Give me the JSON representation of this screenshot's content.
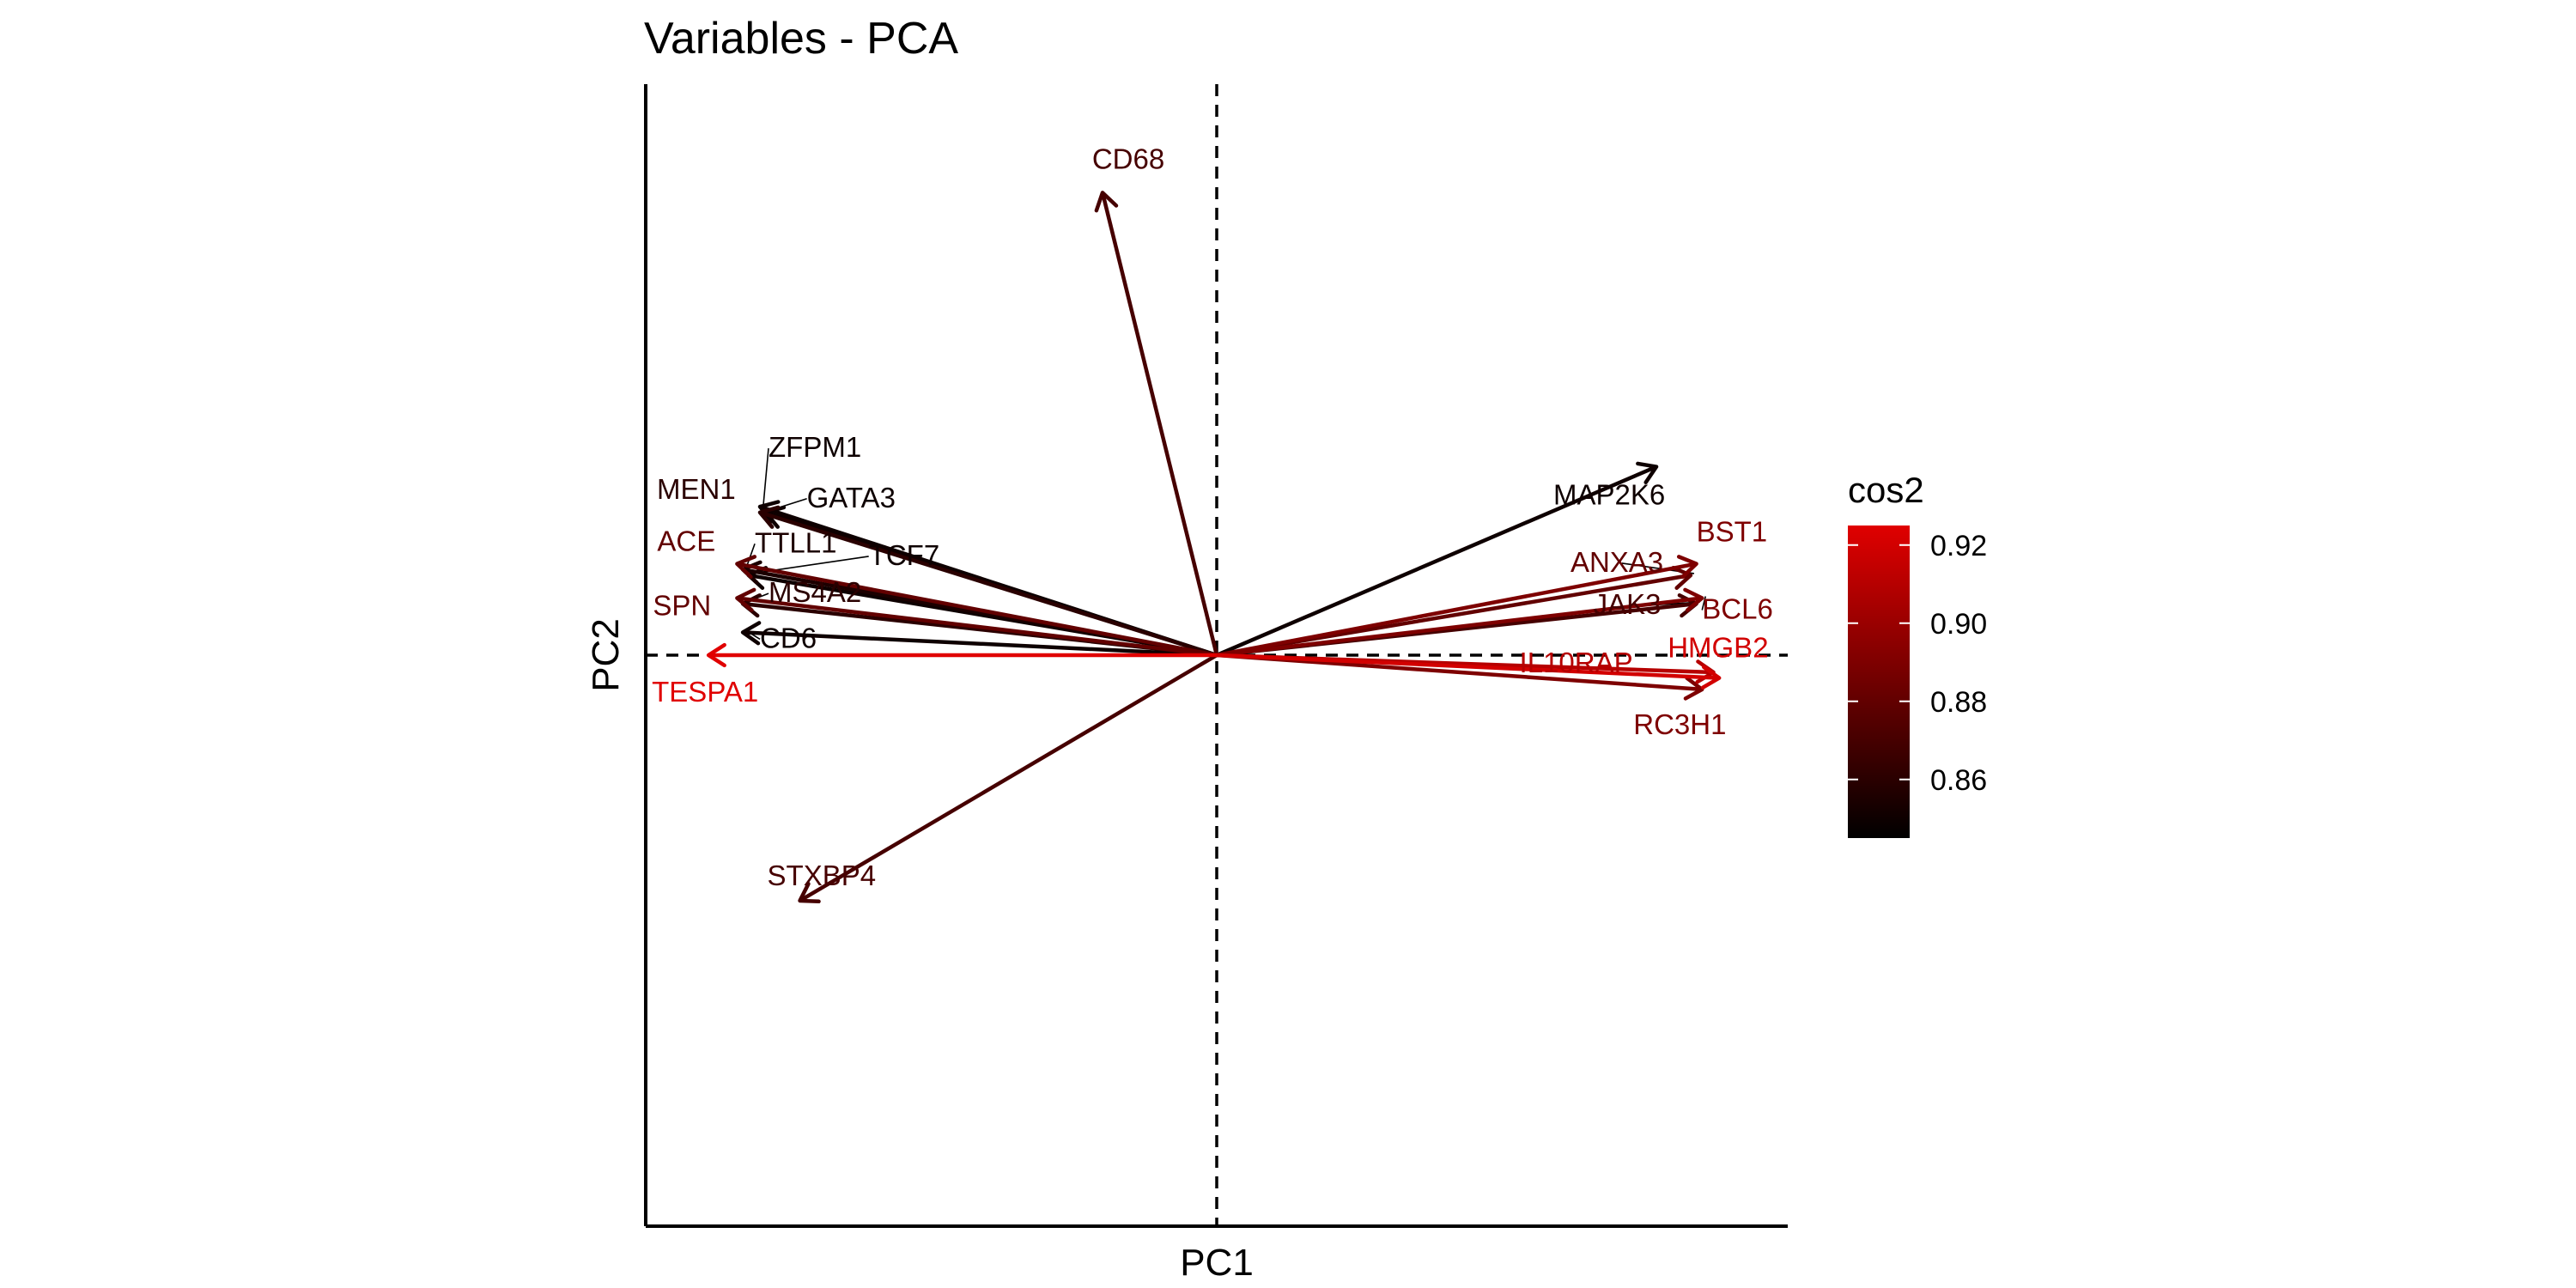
{
  "chart_data": {
    "type": "scatter",
    "subtype": "pca-variable-correlation-arrows",
    "title": "Variables - PCA",
    "xlabel": "PC1",
    "ylabel": "PC2",
    "xlim": [
      -1.0,
      1.0
    ],
    "ylim": [
      -1.0,
      1.0
    ],
    "grid": false,
    "reference_lines": {
      "x": 0,
      "y": 0,
      "style": "dashed"
    },
    "color_scale": {
      "name": "cos2",
      "low_color": "#000000",
      "high_color": "#e00000",
      "range": [
        0.845,
        0.925
      ],
      "ticks": [
        0.86,
        0.88,
        0.9,
        0.92
      ],
      "tick_labels": [
        "0.86",
        "0.88",
        "0.90",
        "0.92"
      ],
      "position": "right"
    },
    "variables": [
      {
        "name": "CD68",
        "x": -0.2,
        "y": 0.81,
        "cos2": 0.87
      },
      {
        "name": "MAP2K6",
        "x": 0.77,
        "y": 0.33,
        "cos2": 0.85
      },
      {
        "name": "BST1",
        "x": 0.84,
        "y": 0.16,
        "cos2": 0.89
      },
      {
        "name": "ANXA3",
        "x": 0.83,
        "y": 0.14,
        "cos2": 0.88
      },
      {
        "name": "BCL6",
        "x": 0.85,
        "y": 0.1,
        "cos2": 0.89
      },
      {
        "name": "JAK3",
        "x": 0.84,
        "y": 0.09,
        "cos2": 0.87
      },
      {
        "name": "HMGB2",
        "x": 0.88,
        "y": -0.04,
        "cos2": 0.92
      },
      {
        "name": "IL10RAP",
        "x": 0.87,
        "y": -0.03,
        "cos2": 0.91
      },
      {
        "name": "RC3H1",
        "x": 0.85,
        "y": -0.06,
        "cos2": 0.89
      },
      {
        "name": "ZFPM1",
        "x": -0.8,
        "y": 0.26,
        "cos2": 0.85
      },
      {
        "name": "MEN1",
        "x": -0.8,
        "y": 0.25,
        "cos2": 0.86
      },
      {
        "name": "GATA3",
        "x": -0.79,
        "y": 0.25,
        "cos2": 0.85
      },
      {
        "name": "TTLL1",
        "x": -0.83,
        "y": 0.15,
        "cos2": 0.855
      },
      {
        "name": "TCF7",
        "x": -0.82,
        "y": 0.14,
        "cos2": 0.85
      },
      {
        "name": "ACE",
        "x": -0.84,
        "y": 0.16,
        "cos2": 0.88
      },
      {
        "name": "SPN",
        "x": -0.84,
        "y": 0.1,
        "cos2": 0.88
      },
      {
        "name": "MS4A2",
        "x": -0.83,
        "y": 0.09,
        "cos2": 0.86
      },
      {
        "name": "CD6",
        "x": -0.83,
        "y": 0.04,
        "cos2": 0.85
      },
      {
        "name": "TESPA1",
        "x": -0.89,
        "y": 0.0,
        "cos2": 0.925
      },
      {
        "name": "STXBP4",
        "x": -0.73,
        "y": -0.43,
        "cos2": 0.87
      }
    ]
  }
}
